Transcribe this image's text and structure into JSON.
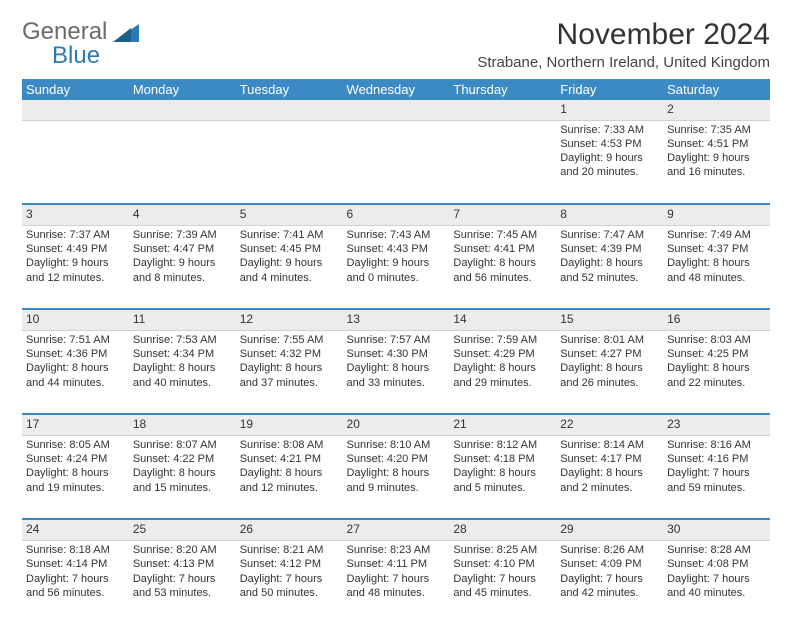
{
  "logo": {
    "textGray": "General",
    "textBlue": "Blue"
  },
  "title": "November 2024",
  "location": "Strabane, Northern Ireland, United Kingdom",
  "colors": {
    "headerBlue": "#3b8ac4",
    "grayBand": "#ececec",
    "logoGray": "#6b6b6b",
    "logoBlue": "#2a7ab9",
    "background": "#ffffff"
  },
  "dayHeaders": [
    "Sunday",
    "Monday",
    "Tuesday",
    "Wednesday",
    "Thursday",
    "Friday",
    "Saturday"
  ],
  "weeks": [
    {
      "nums": [
        "",
        "",
        "",
        "",
        "",
        "1",
        "2"
      ],
      "cells": [
        [],
        [],
        [],
        [],
        [],
        [
          "Sunrise: 7:33 AM",
          "Sunset: 4:53 PM",
          "Daylight: 9 hours",
          "and 20 minutes."
        ],
        [
          "Sunrise: 7:35 AM",
          "Sunset: 4:51 PM",
          "Daylight: 9 hours",
          "and 16 minutes."
        ]
      ]
    },
    {
      "nums": [
        "3",
        "4",
        "5",
        "6",
        "7",
        "8",
        "9"
      ],
      "cells": [
        [
          "Sunrise: 7:37 AM",
          "Sunset: 4:49 PM",
          "Daylight: 9 hours",
          "and 12 minutes."
        ],
        [
          "Sunrise: 7:39 AM",
          "Sunset: 4:47 PM",
          "Daylight: 9 hours",
          "and 8 minutes."
        ],
        [
          "Sunrise: 7:41 AM",
          "Sunset: 4:45 PM",
          "Daylight: 9 hours",
          "and 4 minutes."
        ],
        [
          "Sunrise: 7:43 AM",
          "Sunset: 4:43 PM",
          "Daylight: 9 hours",
          "and 0 minutes."
        ],
        [
          "Sunrise: 7:45 AM",
          "Sunset: 4:41 PM",
          "Daylight: 8 hours",
          "and 56 minutes."
        ],
        [
          "Sunrise: 7:47 AM",
          "Sunset: 4:39 PM",
          "Daylight: 8 hours",
          "and 52 minutes."
        ],
        [
          "Sunrise: 7:49 AM",
          "Sunset: 4:37 PM",
          "Daylight: 8 hours",
          "and 48 minutes."
        ]
      ]
    },
    {
      "nums": [
        "10",
        "11",
        "12",
        "13",
        "14",
        "15",
        "16"
      ],
      "cells": [
        [
          "Sunrise: 7:51 AM",
          "Sunset: 4:36 PM",
          "Daylight: 8 hours",
          "and 44 minutes."
        ],
        [
          "Sunrise: 7:53 AM",
          "Sunset: 4:34 PM",
          "Daylight: 8 hours",
          "and 40 minutes."
        ],
        [
          "Sunrise: 7:55 AM",
          "Sunset: 4:32 PM",
          "Daylight: 8 hours",
          "and 37 minutes."
        ],
        [
          "Sunrise: 7:57 AM",
          "Sunset: 4:30 PM",
          "Daylight: 8 hours",
          "and 33 minutes."
        ],
        [
          "Sunrise: 7:59 AM",
          "Sunset: 4:29 PM",
          "Daylight: 8 hours",
          "and 29 minutes."
        ],
        [
          "Sunrise: 8:01 AM",
          "Sunset: 4:27 PM",
          "Daylight: 8 hours",
          "and 26 minutes."
        ],
        [
          "Sunrise: 8:03 AM",
          "Sunset: 4:25 PM",
          "Daylight: 8 hours",
          "and 22 minutes."
        ]
      ]
    },
    {
      "nums": [
        "17",
        "18",
        "19",
        "20",
        "21",
        "22",
        "23"
      ],
      "cells": [
        [
          "Sunrise: 8:05 AM",
          "Sunset: 4:24 PM",
          "Daylight: 8 hours",
          "and 19 minutes."
        ],
        [
          "Sunrise: 8:07 AM",
          "Sunset: 4:22 PM",
          "Daylight: 8 hours",
          "and 15 minutes."
        ],
        [
          "Sunrise: 8:08 AM",
          "Sunset: 4:21 PM",
          "Daylight: 8 hours",
          "and 12 minutes."
        ],
        [
          "Sunrise: 8:10 AM",
          "Sunset: 4:20 PM",
          "Daylight: 8 hours",
          "and 9 minutes."
        ],
        [
          "Sunrise: 8:12 AM",
          "Sunset: 4:18 PM",
          "Daylight: 8 hours",
          "and 5 minutes."
        ],
        [
          "Sunrise: 8:14 AM",
          "Sunset: 4:17 PM",
          "Daylight: 8 hours",
          "and 2 minutes."
        ],
        [
          "Sunrise: 8:16 AM",
          "Sunset: 4:16 PM",
          "Daylight: 7 hours",
          "and 59 minutes."
        ]
      ]
    },
    {
      "nums": [
        "24",
        "25",
        "26",
        "27",
        "28",
        "29",
        "30"
      ],
      "cells": [
        [
          "Sunrise: 8:18 AM",
          "Sunset: 4:14 PM",
          "Daylight: 7 hours",
          "and 56 minutes."
        ],
        [
          "Sunrise: 8:20 AM",
          "Sunset: 4:13 PM",
          "Daylight: 7 hours",
          "and 53 minutes."
        ],
        [
          "Sunrise: 8:21 AM",
          "Sunset: 4:12 PM",
          "Daylight: 7 hours",
          "and 50 minutes."
        ],
        [
          "Sunrise: 8:23 AM",
          "Sunset: 4:11 PM",
          "Daylight: 7 hours",
          "and 48 minutes."
        ],
        [
          "Sunrise: 8:25 AM",
          "Sunset: 4:10 PM",
          "Daylight: 7 hours",
          "and 45 minutes."
        ],
        [
          "Sunrise: 8:26 AM",
          "Sunset: 4:09 PM",
          "Daylight: 7 hours",
          "and 42 minutes."
        ],
        [
          "Sunrise: 8:28 AM",
          "Sunset: 4:08 PM",
          "Daylight: 7 hours",
          "and 40 minutes."
        ]
      ]
    }
  ]
}
